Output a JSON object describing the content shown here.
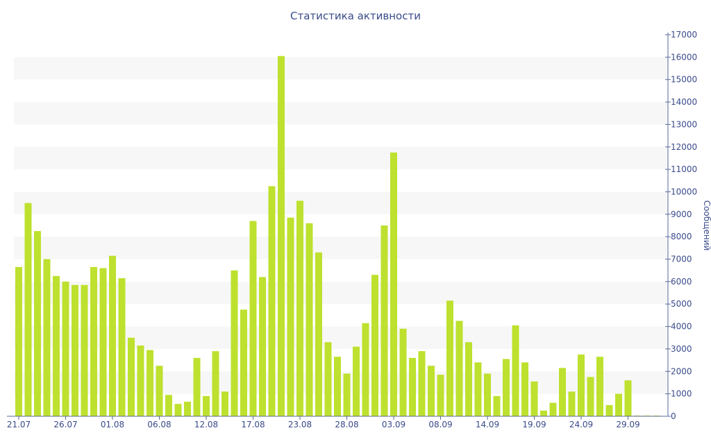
{
  "chart_data": {
    "type": "bar",
    "title": "Статистика активности",
    "xlabel": "",
    "ylabel": "Сообщений",
    "ylim": [
      0,
      17000
    ],
    "y_ticks": [
      0,
      1000,
      2000,
      3000,
      4000,
      5000,
      6000,
      7000,
      8000,
      9000,
      10000,
      11000,
      12000,
      13000,
      14000,
      15000,
      16000,
      17000
    ],
    "y_axis_side": "right",
    "x_tick_labels": [
      {
        "index": 0,
        "label": "21.07"
      },
      {
        "index": 5,
        "label": "26.07"
      },
      {
        "index": 10,
        "label": "01.08"
      },
      {
        "index": 15,
        "label": "06.08"
      },
      {
        "index": 20,
        "label": "12.08"
      },
      {
        "index": 25,
        "label": "17.08"
      },
      {
        "index": 30,
        "label": "23.08"
      },
      {
        "index": 35,
        "label": "28.08"
      },
      {
        "index": 40,
        "label": "03.09"
      },
      {
        "index": 45,
        "label": "08.09"
      },
      {
        "index": 50,
        "label": "14.09"
      },
      {
        "index": 55,
        "label": "19.09"
      },
      {
        "index": 60,
        "label": "24.09"
      },
      {
        "index": 65,
        "label": "29.09"
      }
    ],
    "values": [
      6650,
      9500,
      8250,
      7000,
      6250,
      6000,
      5850,
      5850,
      6650,
      6600,
      7150,
      6150,
      3500,
      3150,
      2950,
      2250,
      950,
      550,
      650,
      2600,
      900,
      2900,
      1100,
      6500,
      4750,
      8700,
      6200,
      10250,
      16050,
      8850,
      9600,
      8600,
      7300,
      3300,
      2650,
      1900,
      3100,
      4150,
      6300,
      8500,
      11750,
      3900,
      2600,
      2900,
      2250,
      1850,
      5150,
      4250,
      3300,
      2400,
      1900,
      900,
      2550,
      4050,
      2400,
      1550,
      250,
      600,
      2150,
      1100,
      2750,
      1750,
      2650,
      500,
      1000,
      1600,
      30,
      30,
      30
    ],
    "bar_color": "#bde12e",
    "grid": "alternating horizontal bands",
    "band_color": "#f7f7f7"
  }
}
